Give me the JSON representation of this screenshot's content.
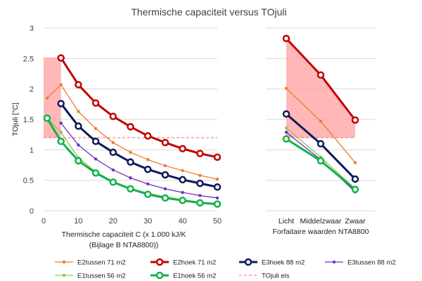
{
  "chart_data": {
    "type": "line",
    "title": "Thermische capaciteit versus TOjuli",
    "ylabel": "TOjuli [°C]",
    "ylim": [
      0,
      3
    ],
    "yticks": [
      "0",
      "0.5",
      "1",
      "1.5",
      "2",
      "2.5",
      "3"
    ],
    "grid": "horizontal",
    "legend_position": "bottom",
    "panels": [
      {
        "id": "left",
        "xlabel_line1": "Thermische capaciteit  C (x 1.000 kJ/K",
        "xlabel_line2": "(Bijlage B NTA8800))",
        "xlim": [
          0,
          50
        ],
        "xticks": [
          "0",
          "10",
          "20",
          "30",
          "40",
          "50"
        ],
        "band": {
          "x": [
            0,
            5
          ],
          "lower": 1.2,
          "upper": 2.52,
          "color": "#ffaaaa"
        },
        "threshold": {
          "x": [
            0,
            50
          ],
          "y": 1.2
        },
        "series": [
          {
            "name": "E2tussen 71 m2",
            "color": "#ed7d31",
            "x": [
              1,
              5,
              10,
              15,
              20,
              25,
              30,
              35,
              40,
              45,
              50
            ],
            "y": [
              1.85,
              2.07,
              1.63,
              1.35,
              1.12,
              0.96,
              0.84,
              0.74,
              0.66,
              0.58,
              0.52
            ]
          },
          {
            "name": "E2hoek 71 m2",
            "color": "#c00000",
            "x": [
              5,
              10,
              15,
              20,
              25,
              30,
              35,
              40,
              45,
              50
            ],
            "y": [
              2.51,
              2.07,
              1.77,
              1.55,
              1.38,
              1.23,
              1.12,
              1.02,
              0.94,
              0.88
            ]
          },
          {
            "name": "E3hoek 88 m2",
            "color": "#0d1a57",
            "x": [
              5,
              10,
              15,
              20,
              25,
              30,
              35,
              40,
              45,
              50
            ],
            "y": [
              1.76,
              1.39,
              1.14,
              0.96,
              0.8,
              0.68,
              0.59,
              0.51,
              0.45,
              0.39
            ]
          },
          {
            "name": "E3tussen 88 m2",
            "color": "#7030c0",
            "x": [
              5,
              10,
              15,
              20,
              25,
              30,
              35,
              40,
              45,
              50
            ],
            "y": [
              1.44,
              1.08,
              0.85,
              0.67,
              0.54,
              0.44,
              0.36,
              0.3,
              0.25,
              0.21
            ]
          },
          {
            "name": "E1tussen 56 m2",
            "color": "#92c353",
            "x": [
              1,
              5,
              10,
              15,
              20,
              25,
              30,
              35,
              40,
              45,
              50
            ],
            "y": [
              1.52,
              1.29,
              0.87,
              0.64,
              0.48,
              0.36,
              0.29,
              0.23,
              0.18,
              0.14,
              0.12
            ]
          },
          {
            "name": "E1hoek 56 m2",
            "color": "#12b049",
            "x": [
              1,
              5,
              10,
              15,
              20,
              25,
              30,
              35,
              40,
              45,
              50
            ],
            "y": [
              1.52,
              1.14,
              0.82,
              0.62,
              0.47,
              0.36,
              0.27,
              0.21,
              0.17,
              0.13,
              0.11
            ]
          }
        ]
      },
      {
        "id": "right",
        "xlabel_line1": "Forfaitaire waarden NTA8800",
        "categories": [
          "Licht",
          "Middelzwaar",
          "Zwaar"
        ],
        "band": {
          "upper": [
            2.83,
            2.23,
            1.49
          ],
          "lower": [
            1.2,
            1.2,
            1.2
          ],
          "color": "#ffaaaa"
        },
        "threshold": {
          "y": 1.2
        },
        "series": [
          {
            "name": "E2tussen 71 m2",
            "color": "#ed7d31",
            "y": [
              2.01,
              1.47,
              0.79
            ]
          },
          {
            "name": "E2hoek 71 m2",
            "color": "#c00000",
            "y": [
              2.83,
              2.23,
              1.49
            ]
          },
          {
            "name": "E3hoek 88 m2",
            "color": "#0d1a57",
            "y": [
              1.59,
              1.1,
              0.52
            ]
          },
          {
            "name": "E3tussen 88 m2",
            "color": "#7030c0",
            "y": [
              1.29,
              0.84,
              0.31
            ]
          },
          {
            "name": "E1tussen 56 m2",
            "color": "#92c353",
            "y": [
              1.36,
              0.88,
              0.36
            ]
          },
          {
            "name": "E1hoek 56 m2",
            "color": "#12b049",
            "y": [
              1.18,
              0.82,
              0.35
            ]
          }
        ]
      }
    ],
    "legend": [
      {
        "name": "E2tussen 71 m2",
        "color": "#ed7d31",
        "style": "thin"
      },
      {
        "name": "E2hoek 71 m2",
        "color": "#c00000",
        "style": "thick"
      },
      {
        "name": "E3hoek 88 m2",
        "color": "#0d1a57",
        "style": "thick"
      },
      {
        "name": "E3tussen 88 m2",
        "color": "#7030c0",
        "style": "thin"
      },
      {
        "name": "E1tussen 56 m2",
        "color": "#92c353",
        "style": "thin"
      },
      {
        "name": "E1hoek 56 m2",
        "color": "#12b049",
        "style": "thick"
      },
      {
        "name": "TOjuli eis",
        "color": "#ff6666",
        "style": "dashed"
      }
    ]
  }
}
